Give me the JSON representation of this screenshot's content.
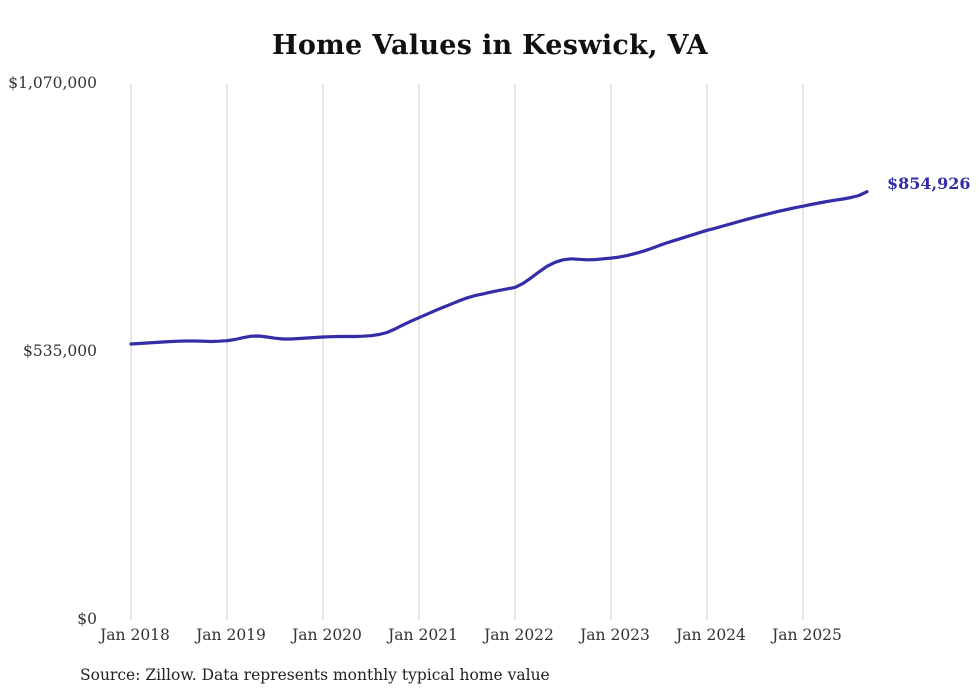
{
  "page": {
    "background_color": "#ffffff"
  },
  "chart_data": {
    "type": "line",
    "title": "Home Values in Keswick, VA",
    "source_note": "Source: Zillow. Data represents monthly typical home value",
    "series_name": "Monthly typical home value",
    "line_color": "#332da8",
    "gridline_color": "#cccccc",
    "end_label": "$854,926",
    "end_value": 854926,
    "ylim": [
      0,
      1070000
    ],
    "y_ticks": [
      {
        "value": 1070000,
        "label": "$1,070,000"
      },
      {
        "value": 535000,
        "label": "$535,000"
      },
      {
        "value": 0,
        "label": "$0"
      }
    ],
    "x_ticks": [
      "Jan 2018",
      "Jan 2019",
      "Jan 2020",
      "Jan 2021",
      "Jan 2022",
      "Jan 2023",
      "Jan 2024",
      "Jan 2025"
    ],
    "grid": "vertical-only",
    "legend": "none",
    "x": [
      "2018-01",
      "2018-02",
      "2018-03",
      "2018-04",
      "2018-05",
      "2018-06",
      "2018-07",
      "2018-08",
      "2018-09",
      "2018-10",
      "2018-11",
      "2018-12",
      "2019-01",
      "2019-02",
      "2019-03",
      "2019-04",
      "2019-05",
      "2019-06",
      "2019-07",
      "2019-08",
      "2019-09",
      "2019-10",
      "2019-11",
      "2019-12",
      "2020-01",
      "2020-02",
      "2020-03",
      "2020-04",
      "2020-05",
      "2020-06",
      "2020-07",
      "2020-08",
      "2020-09",
      "2020-10",
      "2020-11",
      "2020-12",
      "2021-01",
      "2021-02",
      "2021-03",
      "2021-04",
      "2021-05",
      "2021-06",
      "2021-07",
      "2021-08",
      "2021-09",
      "2021-10",
      "2021-11",
      "2021-12",
      "2022-01",
      "2022-02",
      "2022-03",
      "2022-04",
      "2022-05",
      "2022-06",
      "2022-07",
      "2022-08",
      "2022-09",
      "2022-10",
      "2022-11",
      "2022-12",
      "2023-01",
      "2023-02",
      "2023-03",
      "2023-04",
      "2023-05",
      "2023-06",
      "2023-07",
      "2023-08",
      "2023-09",
      "2023-10",
      "2023-11",
      "2023-12",
      "2024-01",
      "2024-02",
      "2024-03",
      "2024-04",
      "2024-05",
      "2024-06",
      "2024-07",
      "2024-08",
      "2024-09",
      "2024-10",
      "2024-11",
      "2024-12",
      "2025-01",
      "2025-02",
      "2025-03",
      "2025-04",
      "2025-05",
      "2025-06",
      "2025-07",
      "2025-08",
      "2025-09"
    ],
    "values": [
      551000,
      552000,
      553000,
      554000,
      555000,
      556000,
      556500,
      557000,
      557000,
      556500,
      556000,
      556500,
      557500,
      560000,
      563500,
      566500,
      567000,
      565000,
      562500,
      561000,
      561000,
      562000,
      563000,
      564000,
      565000,
      565500,
      566000,
      566000,
      566000,
      566500,
      567500,
      570000,
      574000,
      581000,
      589000,
      596500,
      603500,
      610500,
      617500,
      624000,
      630500,
      637000,
      643000,
      647500,
      651000,
      654500,
      658000,
      661000,
      664000,
      672000,
      683000,
      695000,
      706000,
      714000,
      719000,
      721000,
      720000,
      719000,
      719500,
      721000,
      722500,
      724500,
      727500,
      731500,
      736000,
      741500,
      747500,
      753000,
      758000,
      763000,
      768000,
      773000,
      778000,
      782000,
      786500,
      791000,
      795500,
      800000,
      804000,
      808000,
      812000,
      816000,
      819500,
      823000,
      826000,
      829500,
      832500,
      835500,
      838000,
      840500,
      843500,
      847500,
      854926
    ]
  }
}
